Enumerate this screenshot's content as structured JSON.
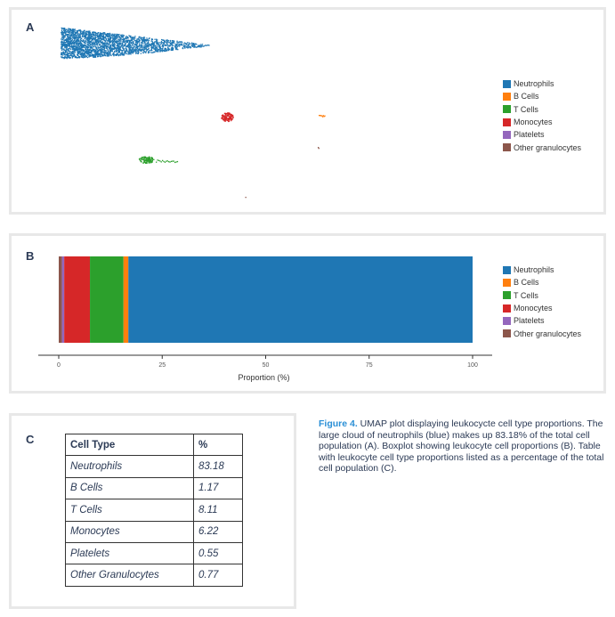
{
  "panels": {
    "a": "A",
    "b": "B",
    "c": "C"
  },
  "legend": [
    {
      "label": "Neutrophils",
      "color": "#1f77b4"
    },
    {
      "label": "B Cells",
      "color": "#ff7f0e"
    },
    {
      "label": "T Cells",
      "color": "#2ca02c"
    },
    {
      "label": "Monocytes",
      "color": "#d62728"
    },
    {
      "label": "Platelets",
      "color": "#9467bd"
    },
    {
      "label": "Other granulocytes",
      "color": "#8c564b"
    }
  ],
  "chart_data": [
    {
      "type": "scatter",
      "panel": "A",
      "title": "",
      "xlabel": "",
      "ylabel": "",
      "series": [
        {
          "name": "Neutrophils",
          "color": "#1f77b4"
        },
        {
          "name": "B Cells",
          "color": "#ff7f0e"
        },
        {
          "name": "T Cells",
          "color": "#2ca02c"
        },
        {
          "name": "Monocytes",
          "color": "#d62728"
        },
        {
          "name": "Platelets",
          "color": "#9467bd"
        },
        {
          "name": "Other granulocytes",
          "color": "#8c564b"
        }
      ],
      "grid": false,
      "legend_position": "right"
    },
    {
      "type": "bar",
      "orientation": "horizontal-stacked",
      "panel": "B",
      "title": "",
      "xlabel": "Proportion (%)",
      "ylabel": "",
      "xlim": [
        0,
        100
      ],
      "xticks": [
        0,
        25,
        50,
        75,
        100
      ],
      "series": [
        {
          "name": "Other granulocytes",
          "value": 0.77,
          "color": "#8c564b"
        },
        {
          "name": "Platelets",
          "value": 0.55,
          "color": "#9467bd"
        },
        {
          "name": "Monocytes",
          "value": 6.22,
          "color": "#d62728"
        },
        {
          "name": "T Cells",
          "value": 8.11,
          "color": "#2ca02c"
        },
        {
          "name": "B Cells",
          "value": 1.17,
          "color": "#ff7f0e"
        },
        {
          "name": "Neutrophils",
          "value": 83.18,
          "color": "#1f77b4"
        }
      ],
      "grid": false,
      "legend_position": "right"
    }
  ],
  "table": {
    "headers": [
      "Cell Type",
      "%"
    ],
    "rows": [
      [
        "Neutrophils",
        "83.18"
      ],
      [
        "B Cells",
        "1.17"
      ],
      [
        "T Cells",
        "8.11"
      ],
      [
        "Monocytes",
        "6.22"
      ],
      [
        "Platelets",
        "0.55"
      ],
      [
        "Other Granulocytes",
        "0.77"
      ]
    ]
  },
  "caption": {
    "figure_label": "Figure 4.",
    "text": " UMAP plot displaying leukocycte cell type proportions. The large cloud of neutrophils (blue) makes up 83.18% of the total cell population (A). Boxplot showing leukocyte cell proportions (B). Table with leukocyte cell type proportions listed as a percentage of the total cell population (C)."
  }
}
